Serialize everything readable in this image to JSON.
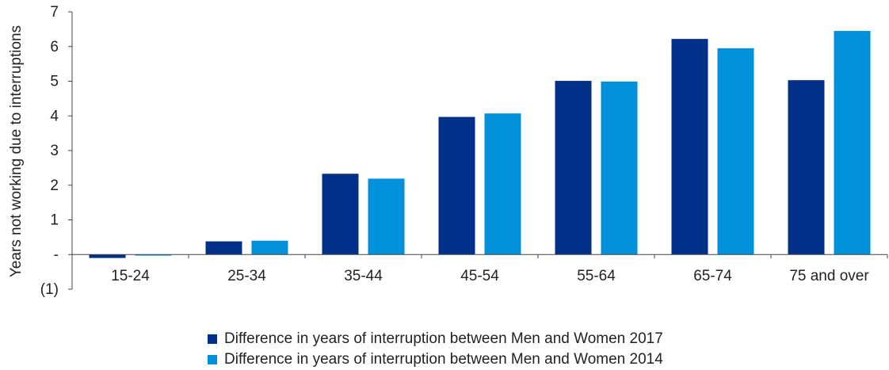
{
  "chart_data": {
    "type": "bar",
    "ylabel": "Years not working due to interruptions",
    "ylim": [
      -1,
      7
    ],
    "yticks": [
      {
        "value": 7,
        "label": "7"
      },
      {
        "value": 6,
        "label": "6"
      },
      {
        "value": 5,
        "label": "5"
      },
      {
        "value": 4,
        "label": "4"
      },
      {
        "value": 3,
        "label": "3"
      },
      {
        "value": 2,
        "label": "2"
      },
      {
        "value": 1,
        "label": "1"
      },
      {
        "value": 0,
        "label": "-"
      },
      {
        "value": -1,
        "label": "(1)"
      }
    ],
    "categories": [
      "15-24",
      "25-34",
      "35-44",
      "45-54",
      "55-64",
      "65-74",
      "75 and over"
    ],
    "series": [
      {
        "name": "Difference in years of interruption between Men and Women 2017",
        "color": "#003087",
        "values": [
          -0.1,
          0.38,
          2.33,
          3.97,
          5.01,
          6.22,
          5.03
        ]
      },
      {
        "name": "Difference in years of interruption between Men and Women 2014",
        "color": "#0091DA",
        "values": [
          -0.03,
          0.4,
          2.19,
          4.07,
          4.99,
          5.95,
          6.45
        ]
      }
    ],
    "grid": false,
    "legend_position": "bottom-center"
  }
}
